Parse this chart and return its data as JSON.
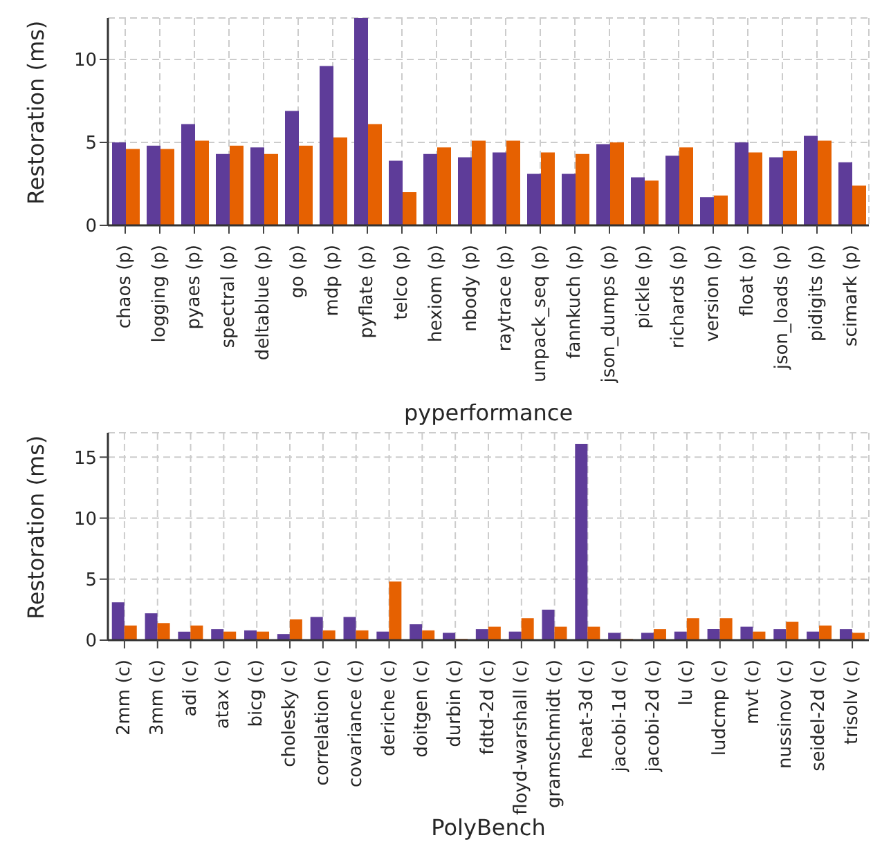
{
  "chart_data": [
    {
      "type": "bar",
      "xlabel": "pyperformance",
      "ylabel": "Restoration (ms)",
      "categories": [
        "chaos (p)",
        "logging (p)",
        "pyaes (p)",
        "spectral (p)",
        "deltablue (p)",
        "go (p)",
        "mdp (p)",
        "pyflate (p)",
        "telco (p)",
        "hexiom (p)",
        "nbody (p)",
        "raytrace (p)",
        "unpack_seq (p)",
        "fannkuch (p)",
        "json_dumps (p)",
        "pickle (p)",
        "richards (p)",
        "version (p)",
        "float (p)",
        "json_loads (p)",
        "pidigits (p)",
        "scimark (p)"
      ],
      "series": [
        {
          "color": "#5e3c99",
          "values": [
            5.0,
            4.8,
            6.1,
            4.3,
            4.7,
            6.9,
            9.6,
            12.5,
            3.9,
            4.3,
            4.1,
            4.4,
            3.1,
            3.1,
            4.9,
            2.9,
            4.2,
            1.7,
            5.0,
            4.1,
            5.4,
            3.8
          ]
        },
        {
          "color": "#e66101",
          "values": [
            4.6,
            4.6,
            5.1,
            4.8,
            4.3,
            4.8,
            5.3,
            6.1,
            2.0,
            4.7,
            5.1,
            5.1,
            4.4,
            4.3,
            5.0,
            2.7,
            4.7,
            1.8,
            4.4,
            4.5,
            5.1,
            2.4
          ]
        }
      ],
      "ylim": [
        0,
        12.5
      ],
      "yticks": [
        0,
        5,
        10
      ],
      "grid": true
    },
    {
      "type": "bar",
      "xlabel": "PolyBench",
      "ylabel": "Restoration (ms)",
      "categories": [
        "2mm (c)",
        "3mm (c)",
        "adi (c)",
        "atax (c)",
        "bicg (c)",
        "cholesky (c)",
        "correlation (c)",
        "covariance (c)",
        "deriche (c)",
        "doitgen (c)",
        "durbin (c)",
        "fdtd-2d (c)",
        "floyd-warshall (c)",
        "gramschmidt (c)",
        "heat-3d (c)",
        "jacobi-1d (c)",
        "jacobi-2d (c)",
        "lu (c)",
        "ludcmp (c)",
        "mvt (c)",
        "nussinov (c)",
        "seidel-2d (c)",
        "trisolv (c)"
      ],
      "series": [
        {
          "color": "#5e3c99",
          "values": [
            3.1,
            2.2,
            0.7,
            0.9,
            0.8,
            0.5,
            1.9,
            1.9,
            0.7,
            1.3,
            0.6,
            0.9,
            0.7,
            2.5,
            16.1,
            0.6,
            0.6,
            0.7,
            0.9,
            1.1,
            0.9,
            0.7,
            0.9
          ]
        },
        {
          "color": "#e66101",
          "values": [
            1.2,
            1.4,
            1.2,
            0.7,
            0.7,
            1.7,
            0.8,
            0.8,
            4.8,
            0.8,
            0.1,
            1.1,
            1.8,
            1.1,
            1.1,
            0.1,
            0.9,
            1.8,
            1.8,
            0.7,
            1.5,
            1.2,
            0.6
          ]
        }
      ],
      "ylim": [
        0,
        17
      ],
      "yticks": [
        0,
        5,
        10,
        15
      ],
      "grid": true
    }
  ]
}
